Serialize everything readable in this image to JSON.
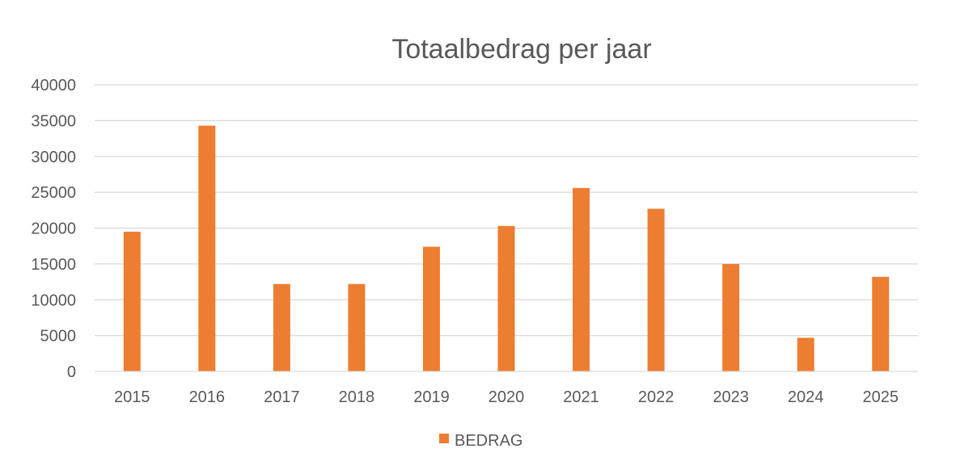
{
  "chart_data": {
    "type": "bar",
    "title": "Totaalbedrag per jaar",
    "xlabel": "",
    "ylabel": "",
    "categories": [
      "2015",
      "2016",
      "2017",
      "2018",
      "2019",
      "2020",
      "2021",
      "2022",
      "2023",
      "2024",
      "2025"
    ],
    "series": [
      {
        "name": "BEDRAG",
        "color": "#ED7D31",
        "values": [
          19500,
          34300,
          12200,
          12200,
          17400,
          20300,
          25600,
          22700,
          15000,
          4700,
          13200
        ]
      }
    ],
    "ylim": [
      0,
      40000
    ],
    "yticks": [
      0,
      5000,
      10000,
      15000,
      20000,
      25000,
      30000,
      35000,
      40000
    ],
    "grid": true,
    "gridColor": "#D9D9D9",
    "legend": "bottom"
  }
}
